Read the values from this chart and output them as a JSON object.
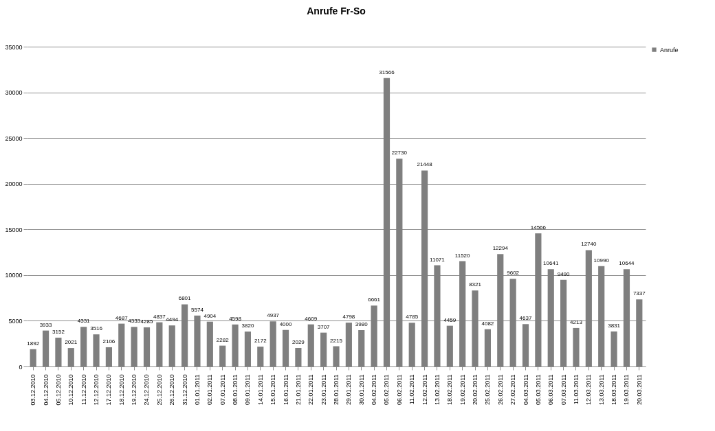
{
  "chart_data": {
    "type": "bar",
    "title": "Anrufe Fr-So",
    "categories": [
      "03.12.2010",
      "04.12.2010",
      "05.12.2010",
      "10.12.2010",
      "11.12.2010",
      "12.12.2010",
      "17.12.2010",
      "18.12.2010",
      "19.12.2010",
      "24.12.2010",
      "25.12.2010",
      "26.12.2010",
      "31.12.2010",
      "01.01.2011",
      "02.01.2011",
      "07.01.2011",
      "08.01.2011",
      "09.01.2011",
      "14.01.2011",
      "15.01.2011",
      "16.01.2011",
      "21.01.2011",
      "22.01.2011",
      "23.01.2011",
      "28.01.2011",
      "29.01.2011",
      "30.01.2011",
      "04.02.2011",
      "05.02.2011",
      "06.02.2011",
      "11.02.2011",
      "12.02.2011",
      "13.02.2011",
      "18.02.2011",
      "19.02.2011",
      "20.02.2011",
      "25.02.2011",
      "26.02.2011",
      "27.02.2011",
      "04.03.2011",
      "05.03.2011",
      "06.03.2011",
      "07.03.2011",
      "11.03.2011",
      "12.03.2011",
      "13.03.2011",
      "18.03.2011",
      "19.03.2011",
      "20.03.2011"
    ],
    "series": [
      {
        "name": "Anrufe",
        "color": "#7f7f7f",
        "values": [
          1892,
          3933,
          3152,
          2021,
          4331,
          3516,
          2106,
          4687,
          4333,
          4285,
          4837,
          4494,
          6801,
          5574,
          4904,
          2282,
          4598,
          3820,
          2172,
          4937,
          4000,
          2029,
          4609,
          3707,
          2215,
          4798,
          3980,
          6661,
          31566,
          22730,
          4785,
          21448,
          11071,
          4459,
          11520,
          8321,
          4082,
          12294,
          9602,
          4637,
          14566,
          10641,
          9490,
          4213,
          12740,
          10990,
          3831,
          10644,
          7337
        ]
      }
    ],
    "ylim": [
      0,
      35000
    ],
    "yticks": [
      0,
      5000,
      10000,
      15000,
      20000,
      25000,
      30000,
      35000
    ],
    "grid": "y",
    "legend": "right",
    "data_labels": true
  }
}
